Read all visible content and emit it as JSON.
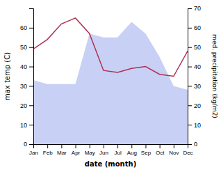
{
  "chart_data": {
    "type": "line",
    "categories": [
      "Jan",
      "Feb",
      "Mar",
      "Apr",
      "May",
      "Jun",
      "Jul",
      "Aug",
      "Sep",
      "Oct",
      "Nov",
      "Dec"
    ],
    "xlabel": "date (month)",
    "ylabel": "max temp (C)",
    "y2label": "med. precipitation (kg/m2)",
    "series": [
      {
        "type": "area",
        "axis": "y2",
        "color": "#c8d0f5",
        "values": [
          33,
          31,
          31,
          31,
          57,
          55,
          55,
          63,
          57,
          45,
          30,
          28
        ]
      },
      {
        "type": "line",
        "color": "#b03050",
        "values": [
          49,
          54,
          62,
          65,
          57,
          38,
          37,
          39,
          40,
          36,
          35,
          48
        ]
      }
    ],
    "ylim": [
      0,
      70
    ],
    "yticks": [
      0,
      10,
      20,
      30,
      40,
      50,
      60
    ],
    "y2lim": [
      0,
      70
    ],
    "y2ticks": [
      0,
      10,
      20,
      30,
      40,
      50,
      60,
      70
    ]
  }
}
